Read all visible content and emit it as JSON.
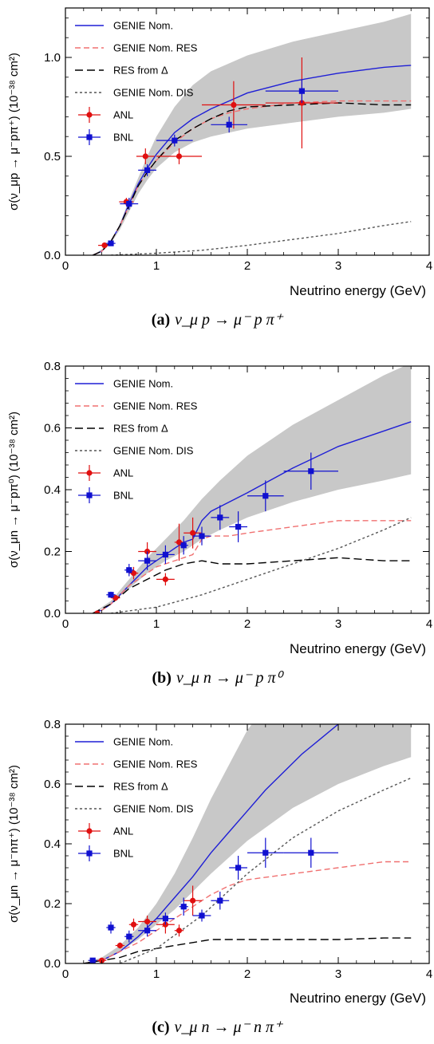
{
  "colors": {
    "band": "#c8c8c8",
    "genie_nom": "#1f1fd6",
    "genie_res": "#f07070",
    "res_delta": "#000000",
    "genie_dis": "#555555",
    "anl": "#e01010",
    "bnl": "#1010d0"
  },
  "chart_data": [
    {
      "type": "line",
      "xlabel": "Neutrino energy (GeV)",
      "ylabel": "σ(ν_μp → μ⁻pπ⁺) (10⁻³⁸ cm²)",
      "xlim": [
        0,
        4
      ],
      "ylim": [
        0,
        1.25
      ],
      "xticks": [
        0,
        1,
        2,
        3,
        4
      ],
      "yticks": [
        0.0,
        0.5,
        1.0
      ],
      "ytick_labels": [
        "0.0",
        "0.5",
        "1.0"
      ],
      "legend_position": "top-left",
      "caption": {
        "label": "(a)",
        "math": "ν_μ p → μ⁻ p π⁺"
      },
      "band": {
        "x": [
          0.3,
          0.4,
          0.5,
          0.6,
          0.7,
          0.8,
          0.9,
          1.0,
          1.2,
          1.4,
          1.6,
          2.0,
          2.5,
          3.0,
          3.5,
          3.8
        ],
        "lower": [
          0.0,
          0.02,
          0.06,
          0.13,
          0.22,
          0.31,
          0.38,
          0.44,
          0.52,
          0.57,
          0.6,
          0.64,
          0.67,
          0.7,
          0.72,
          0.74
        ],
        "upper": [
          0.0,
          0.03,
          0.07,
          0.16,
          0.28,
          0.39,
          0.5,
          0.6,
          0.75,
          0.86,
          0.93,
          1.01,
          1.08,
          1.13,
          1.18,
          1.22
        ]
      },
      "series": [
        {
          "name": "GENIE Nom.",
          "style": "solid",
          "color": "#1f1fd6",
          "x": [
            0.3,
            0.4,
            0.5,
            0.6,
            0.7,
            0.8,
            0.9,
            1.0,
            1.2,
            1.4,
            1.6,
            1.8,
            2.0,
            2.5,
            3.0,
            3.5,
            3.8
          ],
          "y": [
            0.0,
            0.02,
            0.07,
            0.15,
            0.26,
            0.36,
            0.44,
            0.51,
            0.62,
            0.69,
            0.74,
            0.78,
            0.82,
            0.88,
            0.92,
            0.95,
            0.96
          ]
        },
        {
          "name": "GENIE Nom. RES",
          "style": "dashed",
          "color": "#f07070",
          "x": [
            0.3,
            0.4,
            0.5,
            0.6,
            0.7,
            0.8,
            0.9,
            1.0,
            1.2,
            1.4,
            1.6,
            1.8,
            2.0,
            2.5,
            3.0,
            3.5,
            3.8
          ],
          "y": [
            0.0,
            0.02,
            0.07,
            0.15,
            0.25,
            0.35,
            0.42,
            0.48,
            0.57,
            0.64,
            0.69,
            0.72,
            0.74,
            0.77,
            0.78,
            0.78,
            0.78
          ]
        },
        {
          "name": "RES from Δ",
          "style": "longdash",
          "color": "#000000",
          "x": [
            0.3,
            0.4,
            0.5,
            0.6,
            0.7,
            0.8,
            0.9,
            1.0,
            1.2,
            1.4,
            1.6,
            1.8,
            2.0,
            2.5,
            3.0,
            3.5,
            3.8
          ],
          "y": [
            0.0,
            0.02,
            0.07,
            0.15,
            0.25,
            0.35,
            0.42,
            0.48,
            0.58,
            0.64,
            0.69,
            0.73,
            0.75,
            0.76,
            0.77,
            0.76,
            0.76
          ]
        },
        {
          "name": "GENIE Nom. DIS",
          "style": "dotted",
          "color": "#555555",
          "x": [
            0.5,
            1.0,
            1.5,
            2.0,
            2.5,
            3.0,
            3.5,
            3.8
          ],
          "y": [
            0.0,
            0.01,
            0.025,
            0.05,
            0.08,
            0.11,
            0.15,
            0.17
          ]
        }
      ],
      "points": [
        {
          "name": "ANL",
          "marker": "circle",
          "color": "#e01010",
          "data": [
            {
              "x": 0.43,
              "y": 0.05,
              "xerr": 0.07,
              "yerr": 0.01
            },
            {
              "x": 0.67,
              "y": 0.27,
              "xerr": 0.08,
              "yerr": 0.02
            },
            {
              "x": 0.88,
              "y": 0.5,
              "xerr": 0.1,
              "yerr": 0.04
            },
            {
              "x": 1.25,
              "y": 0.5,
              "xerr": 0.25,
              "yerr": 0.04
            },
            {
              "x": 1.85,
              "y": 0.76,
              "xerr": 0.35,
              "yerr": 0.12
            },
            {
              "x": 2.6,
              "y": 0.77,
              "xerr": 0.4,
              "yerr": 0.23
            }
          ]
        },
        {
          "name": "BNL",
          "marker": "square",
          "color": "#1010d0",
          "data": [
            {
              "x": 0.5,
              "y": 0.06,
              "xerr": 0.05,
              "yerr": 0.01
            },
            {
              "x": 0.7,
              "y": 0.26,
              "xerr": 0.1,
              "yerr": 0.03
            },
            {
              "x": 0.9,
              "y": 0.43,
              "xerr": 0.1,
              "yerr": 0.03
            },
            {
              "x": 1.2,
              "y": 0.58,
              "xerr": 0.2,
              "yerr": 0.03
            },
            {
              "x": 1.8,
              "y": 0.66,
              "xerr": 0.2,
              "yerr": 0.04
            },
            {
              "x": 2.6,
              "y": 0.83,
              "xerr": 0.4,
              "yerr": 0.06
            }
          ]
        }
      ]
    },
    {
      "type": "line",
      "xlabel": "Neutrino energy (GeV)",
      "ylabel": "σ(ν_μn → μ⁻pπ⁰) (10⁻³⁸ cm²)",
      "xlim": [
        0,
        4
      ],
      "ylim": [
        0,
        0.8
      ],
      "xticks": [
        0,
        1,
        2,
        3,
        4
      ],
      "yticks": [
        0.0,
        0.2,
        0.4,
        0.6,
        0.8
      ],
      "ytick_labels": [
        "0.0",
        "0.2",
        "0.4",
        "0.6",
        "0.8"
      ],
      "legend_position": "top-left",
      "caption": {
        "label": "(b)",
        "math": "ν_μ n → μ⁻ p π⁰"
      },
      "band": {
        "x": [
          0.3,
          0.5,
          0.7,
          0.9,
          1.1,
          1.3,
          1.5,
          1.7,
          2.0,
          2.5,
          3.0,
          3.5,
          3.8
        ],
        "lower": [
          0.0,
          0.03,
          0.08,
          0.13,
          0.17,
          0.2,
          0.24,
          0.27,
          0.31,
          0.36,
          0.4,
          0.43,
          0.45
        ],
        "upper": [
          0.0,
          0.04,
          0.11,
          0.18,
          0.24,
          0.3,
          0.37,
          0.43,
          0.51,
          0.61,
          0.69,
          0.77,
          0.81
        ]
      },
      "series": [
        {
          "name": "GENIE Nom.",
          "style": "solid",
          "color": "#1f1fd6",
          "x": [
            0.3,
            0.4,
            0.5,
            0.6,
            0.7,
            0.8,
            0.9,
            1.0,
            1.1,
            1.2,
            1.3,
            1.4,
            1.5,
            1.6,
            1.8,
            2.0,
            2.5,
            3.0,
            3.5,
            3.8
          ],
          "y": [
            0.0,
            0.01,
            0.03,
            0.06,
            0.09,
            0.12,
            0.15,
            0.17,
            0.19,
            0.21,
            0.23,
            0.24,
            0.3,
            0.33,
            0.36,
            0.39,
            0.47,
            0.54,
            0.59,
            0.62
          ]
        },
        {
          "name": "GENIE Nom. RES",
          "style": "dashed",
          "color": "#f07070",
          "x": [
            0.3,
            0.4,
            0.5,
            0.6,
            0.7,
            0.8,
            0.9,
            1.0,
            1.1,
            1.2,
            1.3,
            1.4,
            1.5,
            1.6,
            1.8,
            2.0,
            2.5,
            3.0,
            3.5,
            3.8
          ],
          "y": [
            0.0,
            0.01,
            0.03,
            0.06,
            0.09,
            0.11,
            0.13,
            0.15,
            0.16,
            0.17,
            0.18,
            0.19,
            0.24,
            0.25,
            0.25,
            0.26,
            0.28,
            0.3,
            0.3,
            0.3
          ]
        },
        {
          "name": "RES from Δ",
          "style": "longdash",
          "color": "#000000",
          "x": [
            0.3,
            0.5,
            0.7,
            0.9,
            1.1,
            1.3,
            1.5,
            1.7,
            2.0,
            2.5,
            3.0,
            3.5,
            3.8
          ],
          "y": [
            0.0,
            0.03,
            0.08,
            0.11,
            0.14,
            0.16,
            0.17,
            0.16,
            0.16,
            0.17,
            0.18,
            0.17,
            0.17
          ]
        },
        {
          "name": "GENIE Nom. DIS",
          "style": "dotted",
          "color": "#555555",
          "x": [
            0.5,
            1.0,
            1.5,
            2.0,
            2.5,
            3.0,
            3.5,
            3.8
          ],
          "y": [
            0.0,
            0.02,
            0.06,
            0.11,
            0.16,
            0.21,
            0.27,
            0.31
          ]
        }
      ],
      "points": [
        {
          "name": "ANL",
          "marker": "circle",
          "color": "#e01010",
          "data": [
            {
              "x": 0.35,
              "y": 0.0,
              "xerr": 0.05,
              "yerr": 0.005
            },
            {
              "x": 0.55,
              "y": 0.05,
              "xerr": 0.05,
              "yerr": 0.01
            },
            {
              "x": 0.75,
              "y": 0.13,
              "xerr": 0.05,
              "yerr": 0.02
            },
            {
              "x": 0.9,
              "y": 0.2,
              "xerr": 0.1,
              "yerr": 0.03
            },
            {
              "x": 1.1,
              "y": 0.11,
              "xerr": 0.1,
              "yerr": 0.02
            },
            {
              "x": 1.25,
              "y": 0.23,
              "xerr": 0.05,
              "yerr": 0.06
            },
            {
              "x": 1.4,
              "y": 0.26,
              "xerr": 0.1,
              "yerr": 0.05
            }
          ]
        },
        {
          "name": "BNL",
          "marker": "square",
          "color": "#1010d0",
          "data": [
            {
              "x": 0.5,
              "y": 0.06,
              "xerr": 0.05,
              "yerr": 0.01
            },
            {
              "x": 0.7,
              "y": 0.14,
              "xerr": 0.05,
              "yerr": 0.02
            },
            {
              "x": 0.9,
              "y": 0.17,
              "xerr": 0.1,
              "yerr": 0.03
            },
            {
              "x": 1.1,
              "y": 0.19,
              "xerr": 0.1,
              "yerr": 0.03
            },
            {
              "x": 1.3,
              "y": 0.22,
              "xerr": 0.05,
              "yerr": 0.03
            },
            {
              "x": 1.5,
              "y": 0.25,
              "xerr": 0.1,
              "yerr": 0.03
            },
            {
              "x": 1.7,
              "y": 0.31,
              "xerr": 0.1,
              "yerr": 0.04
            },
            {
              "x": 1.9,
              "y": 0.28,
              "xerr": 0.1,
              "yerr": 0.05
            },
            {
              "x": 2.2,
              "y": 0.38,
              "xerr": 0.2,
              "yerr": 0.05
            },
            {
              "x": 2.7,
              "y": 0.46,
              "xerr": 0.3,
              "yerr": 0.06
            }
          ]
        }
      ]
    },
    {
      "type": "line",
      "xlabel": "Neutrino energy (GeV)",
      "ylabel": "σ(ν_μn → μ⁻nπ⁺) (10⁻³⁸ cm²)",
      "xlim": [
        0,
        4
      ],
      "ylim": [
        0,
        0.8
      ],
      "xticks": [
        0,
        1,
        2,
        3,
        4
      ],
      "yticks": [
        0.0,
        0.2,
        0.4,
        0.6,
        0.8
      ],
      "ytick_labels": [
        "0.0",
        "0.2",
        "0.4",
        "0.6",
        "0.8"
      ],
      "legend_position": "top-left",
      "caption": {
        "label": "(c)",
        "math": "ν_μ n → μ⁻ n π⁺"
      },
      "band": {
        "x": [
          0.2,
          0.4,
          0.6,
          0.8,
          1.0,
          1.2,
          1.4,
          1.6,
          2.0,
          2.5,
          3.0,
          3.5,
          3.8
        ],
        "lower": [
          0.0,
          0.01,
          0.04,
          0.08,
          0.13,
          0.18,
          0.24,
          0.3,
          0.41,
          0.52,
          0.6,
          0.66,
          0.69
        ],
        "upper": [
          0.0,
          0.02,
          0.06,
          0.12,
          0.2,
          0.3,
          0.42,
          0.55,
          0.78,
          0.98,
          1.1,
          1.2,
          1.25
        ]
      },
      "series": [
        {
          "name": "GENIE Nom.",
          "style": "solid",
          "color": "#1f1fd6",
          "x": [
            0.2,
            0.4,
            0.6,
            0.8,
            1.0,
            1.2,
            1.4,
            1.6,
            1.8,
            2.0,
            2.2,
            2.4,
            2.6,
            2.8,
            3.0
          ],
          "y": [
            0.0,
            0.01,
            0.04,
            0.09,
            0.15,
            0.22,
            0.29,
            0.37,
            0.44,
            0.51,
            0.58,
            0.64,
            0.7,
            0.75,
            0.8
          ]
        },
        {
          "name": "GENIE Nom. RES",
          "style": "dashed",
          "color": "#f07070",
          "x": [
            0.2,
            0.4,
            0.6,
            0.8,
            1.0,
            1.2,
            1.4,
            1.6,
            1.8,
            2.0,
            2.5,
            3.0,
            3.5,
            3.8
          ],
          "y": [
            0.0,
            0.01,
            0.04,
            0.07,
            0.11,
            0.15,
            0.19,
            0.23,
            0.26,
            0.28,
            0.3,
            0.32,
            0.34,
            0.34
          ]
        },
        {
          "name": "RES from Δ",
          "style": "longdash",
          "color": "#000000",
          "x": [
            0.2,
            0.4,
            0.6,
            0.8,
            1.0,
            1.2,
            1.4,
            1.6,
            2.0,
            2.5,
            3.0,
            3.5,
            3.8
          ],
          "y": [
            0.0,
            0.01,
            0.02,
            0.04,
            0.05,
            0.06,
            0.07,
            0.08,
            0.08,
            0.08,
            0.08,
            0.085,
            0.085
          ]
        },
        {
          "name": "GENIE Nom. DIS",
          "style": "dotted",
          "color": "#555555",
          "x": [
            0.6,
            1.0,
            1.5,
            2.0,
            2.5,
            3.0,
            3.5,
            3.8
          ],
          "y": [
            0.0,
            0.05,
            0.16,
            0.3,
            0.42,
            0.51,
            0.58,
            0.62
          ]
        }
      ],
      "points": [
        {
          "name": "ANL",
          "marker": "circle",
          "color": "#e01010",
          "data": [
            {
              "x": 0.4,
              "y": 0.01,
              "xerr": 0.05,
              "yerr": 0.005
            },
            {
              "x": 0.6,
              "y": 0.06,
              "xerr": 0.05,
              "yerr": 0.01
            },
            {
              "x": 0.75,
              "y": 0.13,
              "xerr": 0.05,
              "yerr": 0.02
            },
            {
              "x": 0.9,
              "y": 0.14,
              "xerr": 0.1,
              "yerr": 0.02
            },
            {
              "x": 1.1,
              "y": 0.13,
              "xerr": 0.1,
              "yerr": 0.03
            },
            {
              "x": 1.25,
              "y": 0.11,
              "xerr": 0.05,
              "yerr": 0.02
            },
            {
              "x": 1.4,
              "y": 0.21,
              "xerr": 0.1,
              "yerr": 0.05
            }
          ]
        },
        {
          "name": "BNL",
          "marker": "square",
          "color": "#1010d0",
          "data": [
            {
              "x": 0.3,
              "y": 0.01,
              "xerr": 0.05,
              "yerr": 0.005
            },
            {
              "x": 0.5,
              "y": 0.12,
              "xerr": 0.05,
              "yerr": 0.02
            },
            {
              "x": 0.7,
              "y": 0.09,
              "xerr": 0.05,
              "yerr": 0.02
            },
            {
              "x": 0.9,
              "y": 0.11,
              "xerr": 0.1,
              "yerr": 0.02
            },
            {
              "x": 1.1,
              "y": 0.15,
              "xerr": 0.1,
              "yerr": 0.02
            },
            {
              "x": 1.3,
              "y": 0.19,
              "xerr": 0.05,
              "yerr": 0.03
            },
            {
              "x": 1.5,
              "y": 0.16,
              "xerr": 0.1,
              "yerr": 0.02
            },
            {
              "x": 1.7,
              "y": 0.21,
              "xerr": 0.1,
              "yerr": 0.03
            },
            {
              "x": 1.9,
              "y": 0.32,
              "xerr": 0.1,
              "yerr": 0.04
            },
            {
              "x": 2.2,
              "y": 0.37,
              "xerr": 0.2,
              "yerr": 0.05
            },
            {
              "x": 2.7,
              "y": 0.37,
              "xerr": 0.3,
              "yerr": 0.05
            }
          ]
        }
      ]
    }
  ]
}
